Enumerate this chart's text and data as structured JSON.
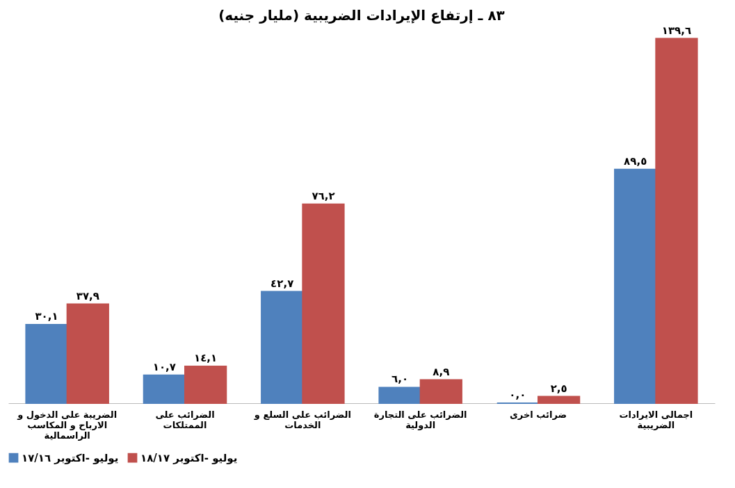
{
  "chart_data": {
    "type": "bar",
    "title": "٨٣ ـ إرتفاع الإيرادات الضريبية (مليار جنيه)",
    "categories": [
      "الضريبة على الدخول و الارباح و المكاسب الراسمالية",
      "الضرائب على الممتلكات",
      "الضرائب على السلع و الخدمات",
      "الضرائب على التجارة الدولية",
      "ضرائب اخرى",
      "اجمالى الايرادات الضريبية"
    ],
    "series": [
      {
        "name": "يوليو -اكتوبر ١٧/١٦",
        "color": "#4f81bd",
        "values": [
          30.1,
          10.7,
          42.7,
          6.0,
          0.0,
          89.5
        ],
        "value_labels": [
          "٣٠,١",
          "١٠,٧",
          "٤٢,٧",
          "٦,٠",
          "٠,٠",
          "٨٩,٥"
        ]
      },
      {
        "name": "يوليو -اكتوبر ١٨/١٧",
        "color": "#c0504d",
        "values": [
          37.9,
          14.1,
          76.2,
          8.9,
          2.5,
          139.6
        ],
        "value_labels": [
          "٣٧,٩",
          "١٤,١",
          "٧٦,٢",
          "٨,٩",
          "٢,٥",
          "١٣٩,٦"
        ]
      }
    ],
    "legend": "bottom",
    "grid": false
  }
}
